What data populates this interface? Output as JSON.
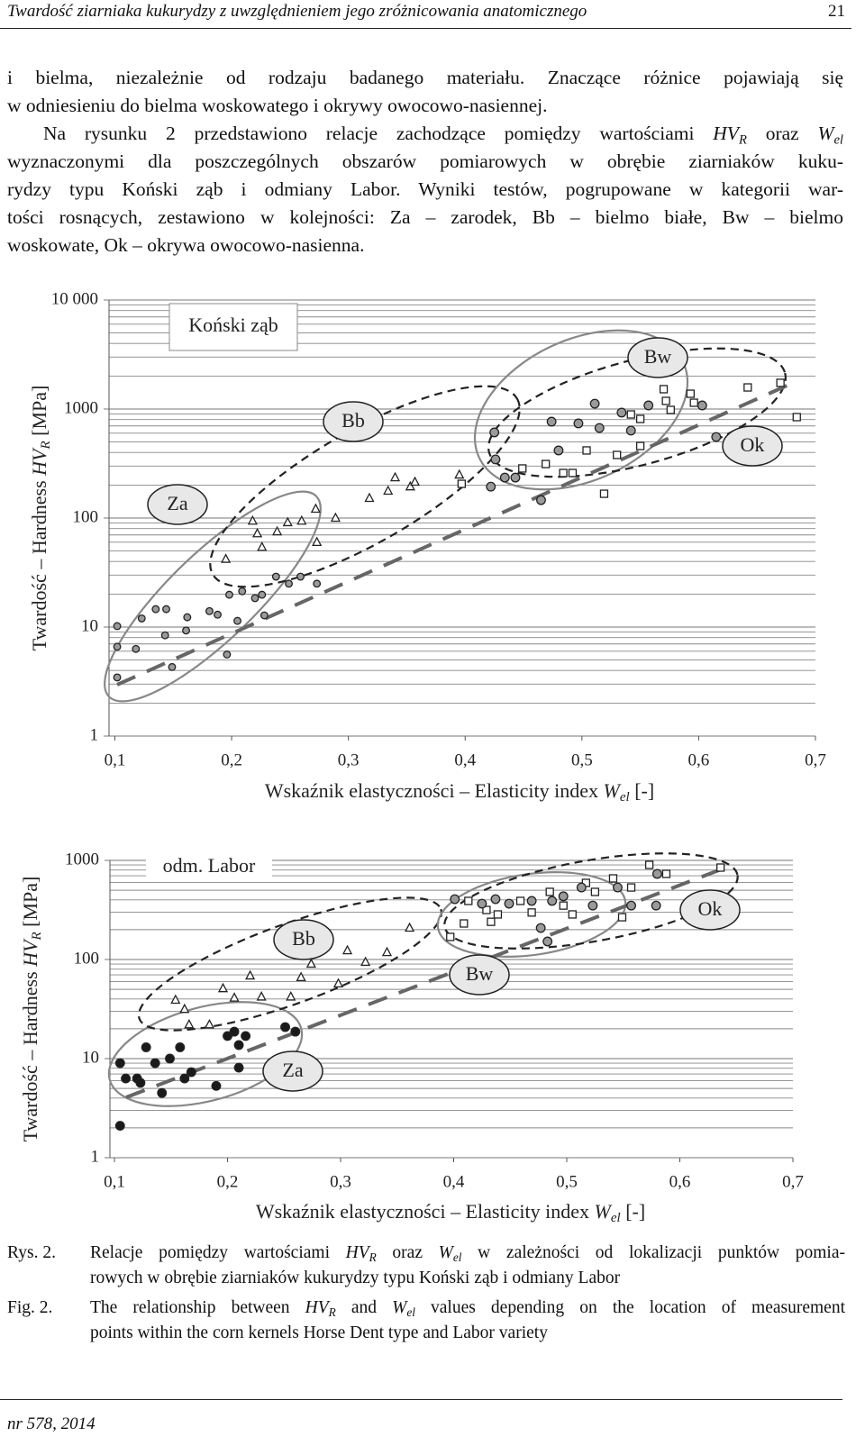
{
  "header": {
    "title": "Twardość ziarniaka kukurydzy z uwzględnieniem jego zróżnicowania anatomicznego",
    "page": "21"
  },
  "body": {
    "lines": [
      [
        "i bielma, niezależnie od rodzaju badanego materiału. Znaczące różnice pojawiają się"
      ],
      [
        "w odniesieniu do bielma woskowatego i okrywy owocowo-nasiennej."
      ],
      [
        "Na rysunku 2 przedstawiono relacje zachodzące pomiędzy wartościami ",
        "HV",
        "R",
        " oraz ",
        "W",
        "el"
      ],
      [
        "wyznaczonymi dla poszczególnych obszarów pomiarowych w obrębie ziarniaków kuku-"
      ],
      [
        "rydzy typu Koński ząb i odmiany Labor. Wyniki testów, pogrupowane w kategorii war-"
      ],
      [
        "tości rosnących, zestawiono w kolejności: Za – zarodek, Bb – bielmo białe, Bw – bielmo"
      ],
      [
        "woskowate, Ok – okrywa owocowo-nasienna."
      ]
    ]
  },
  "chart_data": [
    {
      "type": "scatter",
      "title": "Koński ząb",
      "log_y": true,
      "grid": true,
      "minor_grid": true,
      "xlabel": {
        "text": "Wskaźnik elastyczności – Elasticity index ",
        "symbol": "W",
        "subscript": "el",
        "unit": " [-]"
      },
      "ylabel": {
        "text": "Twardość – Hardness ",
        "symbol": "HV",
        "subscript": "R",
        "unit": " [MPa]"
      },
      "xlim": [
        0.095,
        0.7
      ],
      "ylim": [
        1,
        10000
      ],
      "xticks": [
        {
          "value": 0.1,
          "label": "0,1"
        },
        {
          "value": 0.2,
          "label": "0,2"
        },
        {
          "value": 0.3,
          "label": "0,3"
        },
        {
          "value": 0.4,
          "label": "0,4"
        },
        {
          "value": 0.5,
          "label": "0,5"
        },
        {
          "value": 0.6,
          "label": "0,6"
        },
        {
          "value": 0.7,
          "label": "0,7"
        }
      ],
      "yticks": [
        1,
        10,
        100,
        1000,
        {
          "value": 10000,
          "label": "10 000"
        }
      ],
      "series": [
        {
          "name": "Za",
          "marker": "circle",
          "color": "#9a9a9a",
          "x": [
            0.102,
            0.102,
            0.102,
            0.118,
            0.123,
            0.135,
            0.144,
            0.143,
            0.149,
            0.161,
            0.162,
            0.181,
            0.188,
            0.196,
            0.198,
            0.205,
            0.209,
            0.22,
            0.226,
            0.228,
            0.238,
            0.249,
            0.259,
            0.273
          ],
          "values": [
            10.2,
            6.6,
            3.45,
            6.3,
            12,
            14.6,
            14.6,
            8.4,
            4.3,
            9.3,
            12.3,
            14,
            13,
            5.6,
            19.8,
            11.4,
            21.3,
            18.4,
            19.8,
            12.8,
            29,
            25,
            29,
            25
          ]
        },
        {
          "name": "Bb",
          "marker": "triangle",
          "color": "#ffffff",
          "x": [
            0.195,
            0.218,
            0.222,
            0.226,
            0.239,
            0.248,
            0.26,
            0.273,
            0.272,
            0.289,
            0.318,
            0.334,
            0.34,
            0.353,
            0.357,
            0.395
          ],
          "values": [
            42,
            94,
            72,
            54,
            75,
            91,
            94,
            60,
            121,
            100,
            152,
            177,
            235,
            194,
            214,
            249
          ]
        },
        {
          "name": "Bw",
          "marker": "circle-large",
          "color": "#9a9a9a",
          "x": [
            0.425,
            0.426,
            0.434,
            0.443,
            0.465,
            0.474,
            0.48,
            0.497,
            0.511,
            0.515,
            0.534,
            0.542,
            0.557,
            0.603,
            0.615,
            0.422
          ],
          "values": [
            610,
            345,
            235,
            235,
            146,
            766,
            417,
            738,
            1120,
            670,
            927,
            634,
            1079,
            1079,
            554,
            194
          ]
        },
        {
          "name": "Ok",
          "marker": "square",
          "color": "#ffffff",
          "x": [
            0.397,
            0.449,
            0.469,
            0.484,
            0.492,
            0.504,
            0.519,
            0.53,
            0.542,
            0.55,
            0.55,
            0.57,
            0.572,
            0.576,
            0.596,
            0.642,
            0.67,
            0.684,
            0.593
          ],
          "values": [
            206,
            285,
            313,
            259,
            259,
            417,
            167,
            379,
            892,
            811,
            458,
            1521,
            1187,
            981,
            1142,
            1578,
            1738,
            843,
            1381
          ]
        }
      ]
    },
    {
      "type": "scatter",
      "title": "odm. Labor",
      "log_y": true,
      "grid": true,
      "minor_grid": true,
      "xlabel": {
        "text": "Wskaźnik elastyczności – Elasticity index ",
        "symbol": "W",
        "subscript": "el",
        "unit": " [-]"
      },
      "ylabel": {
        "text": "Twardość – Hardness ",
        "symbol": "HV",
        "subscript": "R",
        "unit": " [MPa]"
      },
      "xlim": [
        0.096,
        0.7
      ],
      "ylim": [
        1,
        1000
      ],
      "xticks": [
        {
          "value": 0.1,
          "label": "0,1"
        },
        {
          "value": 0.2,
          "label": "0,2"
        },
        {
          "value": 0.3,
          "label": "0,3"
        },
        {
          "value": 0.4,
          "label": "0,4"
        },
        {
          "value": 0.5,
          "label": "0,5"
        },
        {
          "value": 0.6,
          "label": "0,6"
        },
        {
          "value": 0.7,
          "label": "0,7"
        }
      ],
      "yticks": [
        1,
        10,
        100,
        1000
      ],
      "series": [
        {
          "name": "Za",
          "marker": "circle-large",
          "color": "#1a1a1a",
          "x": [
            0.105,
            0.105,
            0.11,
            0.12,
            0.123,
            0.128,
            0.136,
            0.142,
            0.149,
            0.158,
            0.162,
            0.168,
            0.19,
            0.2,
            0.206,
            0.21,
            0.216,
            0.21,
            0.251,
            0.26
          ],
          "values": [
            9,
            2.1,
            6.3,
            6.3,
            5.7,
            13,
            9,
            4.5,
            10,
            13,
            6.3,
            7.3,
            5.3,
            16.9,
            18.7,
            13.7,
            16.9,
            8.1,
            20.8,
            18.7
          ]
        },
        {
          "name": "Bb",
          "marker": "triangle",
          "color": "#ffffff",
          "x": [
            0.154,
            0.162,
            0.166,
            0.184,
            0.196,
            0.206,
            0.22,
            0.23,
            0.256,
            0.265,
            0.274,
            0.298,
            0.306,
            0.322,
            0.341,
            0.361
          ],
          "values": [
            39,
            31.5,
            22,
            22,
            51,
            41,
            68.5,
            42,
            42,
            66,
            90,
            57,
            123,
            94,
            118,
            208
          ]
        },
        {
          "name": "Bw",
          "marker": "square",
          "color": "#ffffff",
          "x": [
            0.397,
            0.409,
            0.413,
            0.429,
            0.439,
            0.459,
            0.469,
            0.485,
            0.497,
            0.505,
            0.517,
            0.525,
            0.541,
            0.557,
            0.573,
            0.588,
            0.636,
            0.549,
            0.433
          ],
          "values": [
            169,
            231,
            390,
            316,
            285,
            390,
            298,
            481,
            350,
            285,
            593,
            481,
            658,
            533,
            901,
            731,
            846,
            267,
            240
          ]
        },
        {
          "name": "Ok",
          "marker": "circle-large",
          "color": "#9a9a9a",
          "x": [
            0.401,
            0.425,
            0.437,
            0.449,
            0.469,
            0.483,
            0.487,
            0.497,
            0.513,
            0.523,
            0.545,
            0.557,
            0.579,
            0.58,
            0.477
          ],
          "values": [
            406,
            366,
            406,
            366,
            390,
            152,
            390,
            434,
            533,
            350,
            533,
            350,
            350,
            731,
            208
          ]
        }
      ]
    }
  ],
  "caption": {
    "pl": {
      "label": "Rys. 2.",
      "lines": [
        [
          "Relacje pomiędzy wartościami ",
          "HV",
          "R",
          " oraz ",
          "W",
          "el",
          " w zależności od lokalizacji punktów pomia-"
        ],
        [
          "rowych w obrębie ziarniaków kukurydzy typu Koński ząb i odmiany Labor"
        ]
      ]
    },
    "en": {
      "label": "Fig. 2.",
      "lines": [
        [
          "The relationship between ",
          "HV",
          "R",
          " and ",
          "W",
          "el",
          " values depending on the location of measurement"
        ],
        [
          "points within the corn kernels Horse Dent type and Labor variety"
        ]
      ]
    }
  },
  "footer": "nr 578, 2014"
}
